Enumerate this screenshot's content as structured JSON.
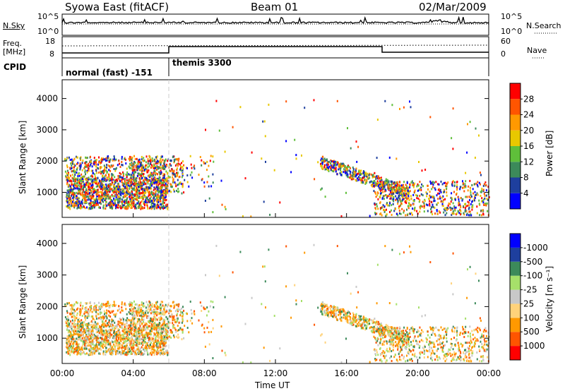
{
  "header": {
    "station": "Syowa East (fitACF)",
    "beam": "Beam 01",
    "date": "02/Mar/2009"
  },
  "noise_panel": {
    "left_label": "N.Sky",
    "right_label": "N.Search",
    "top_tick": "10^5",
    "bottom_tick": "10^0",
    "right_top_tick": "10^5",
    "right_bottom_tick": "10^0"
  },
  "freq_panel": {
    "left_label_1": "Freq.",
    "left_label_2": "[MHz]",
    "left_top_tick": "18",
    "left_bottom_tick": "8",
    "right_label": "Nave",
    "right_top_tick": "60",
    "right_bottom_tick": "0"
  },
  "cpid_panel": {
    "label": "CPID",
    "modes": [
      "normal (fast) -151",
      "themis 3300"
    ]
  },
  "colors": {
    "scale": [
      "#0000ff",
      "#1e3f9e",
      "#3c8a5a",
      "#5fbf3a",
      "#e8c800",
      "#ff9900",
      "#ff5500",
      "#ff0000"
    ],
    "velocity_scale": [
      "#ff0000",
      "#ff5500",
      "#ff9900",
      "#ffd27a",
      "#c8c8c8",
      "#a6e06a",
      "#3c8a5a",
      "#1e3f9e",
      "#0000ff"
    ]
  },
  "chart_data": [
    {
      "type": "heatmap",
      "name": "power",
      "ylabel": "Slant Range [km]",
      "yticks": [
        1000,
        2000,
        3000,
        4000
      ],
      "ylim": [
        200,
        4600
      ],
      "colorbar_label": "Power [dB]",
      "colorbar_ticks": [
        4,
        8,
        12,
        16,
        20,
        24,
        28
      ],
      "clim": [
        0,
        30
      ]
    },
    {
      "type": "heatmap",
      "name": "velocity",
      "ylabel": "Slant Range [km]",
      "yticks": [
        1000,
        2000,
        3000,
        4000
      ],
      "ylim": [
        200,
        4600
      ],
      "colorbar_label": "Velocity [m s⁻¹]",
      "colorbar_ticks": [
        1000,
        500,
        100,
        25,
        -25,
        -100,
        -500,
        -1000
      ]
    }
  ],
  "xaxis": {
    "label": "Time UT",
    "ticks": [
      "00:00",
      "04:00",
      "08:00",
      "12:00",
      "16:00",
      "20:00",
      "00:00"
    ]
  }
}
